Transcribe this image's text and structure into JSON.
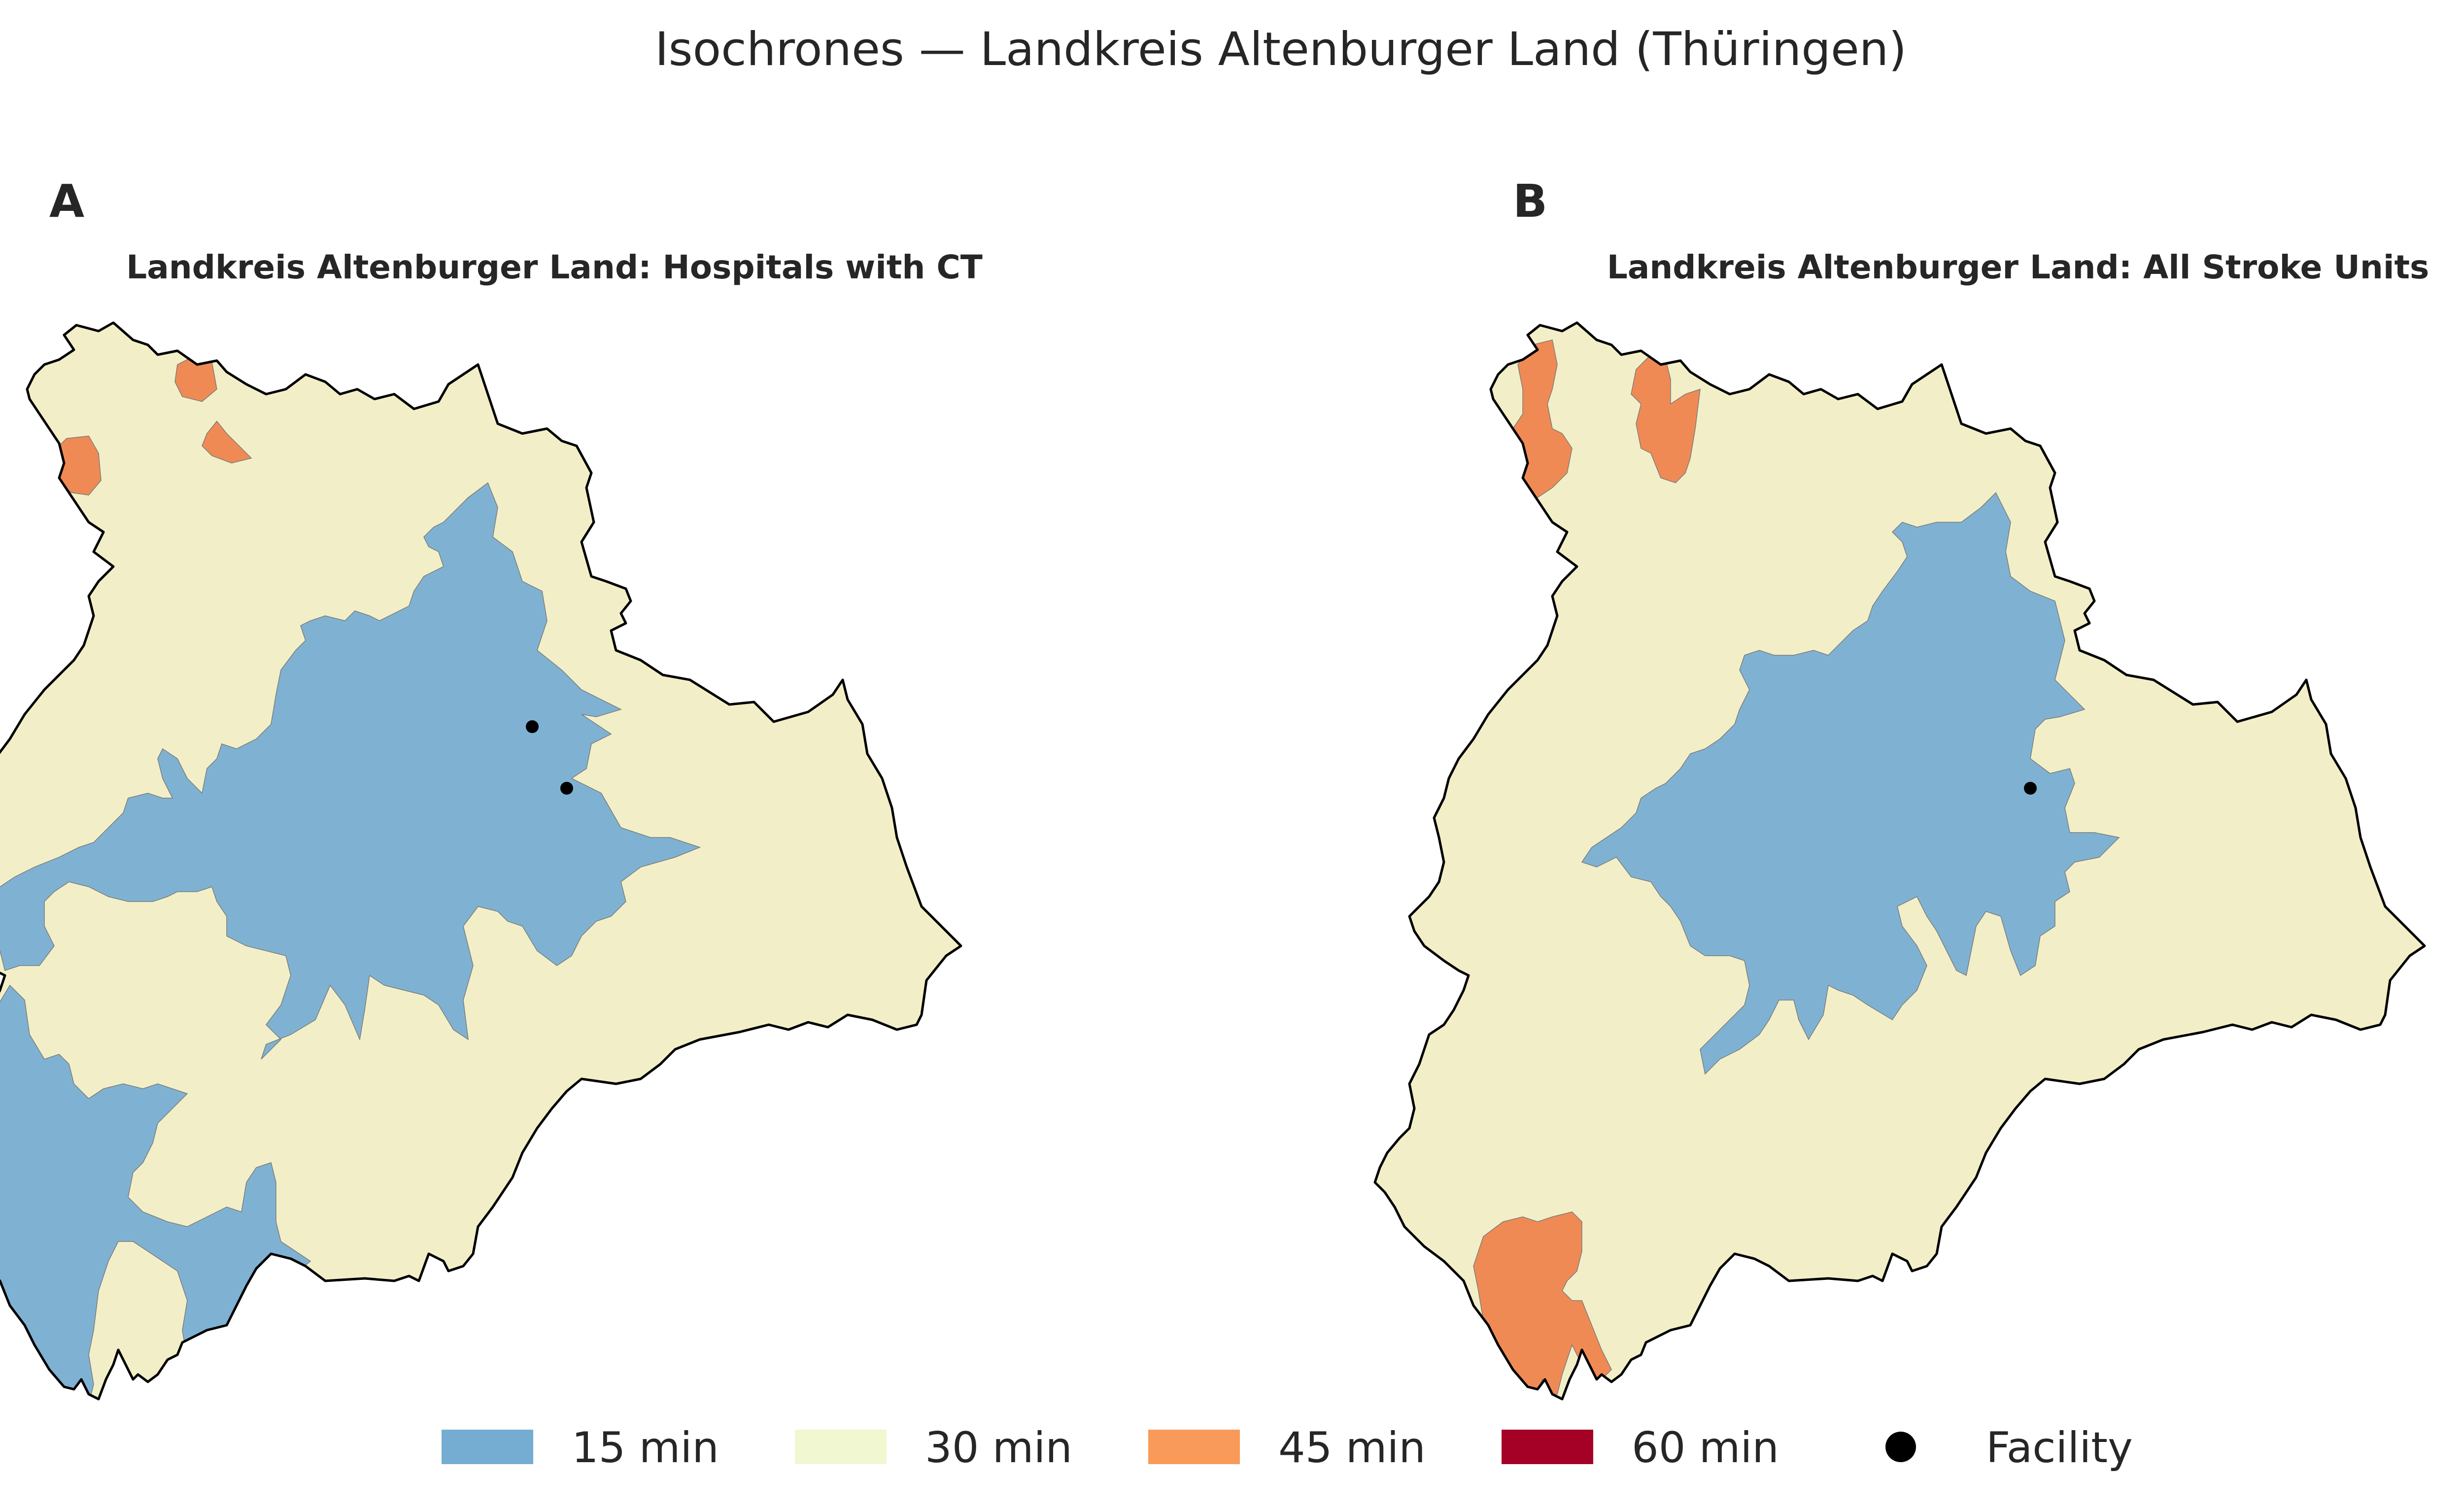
{
  "title": "Isochrones — Landkreis Altenburger Land (Thüringen)",
  "colors": {
    "15 min": "#7fb2d2",
    "30 min": "#f2efc8",
    "45 min": "#f08a55",
    "60 min": "#a50026",
    "legend_15": "#74add1",
    "legend_30": "#f0f7d1",
    "legend_45": "#f99a5a",
    "legend_60": "#a50026",
    "facility": "#000000"
  },
  "panels": [
    {
      "letter": "A",
      "title": "Landkreis Altenburger Land: Hospitals with CT",
      "facilities_shown": 2
    },
    {
      "letter": "B",
      "title": "Landkreis Altenburger Land: All Stroke Units",
      "facilities_shown": 1
    }
  ],
  "legend": [
    {
      "label": "15 min",
      "color": "#74add1",
      "kind": "patch"
    },
    {
      "label": "30 min",
      "color": "#f0f7d1",
      "kind": "patch"
    },
    {
      "label": "45 min",
      "color": "#f99a5a",
      "kind": "patch"
    },
    {
      "label": "60 min",
      "color": "#a50026",
      "kind": "patch"
    },
    {
      "label": "Facility",
      "color": "#000000",
      "kind": "marker"
    }
  ]
}
